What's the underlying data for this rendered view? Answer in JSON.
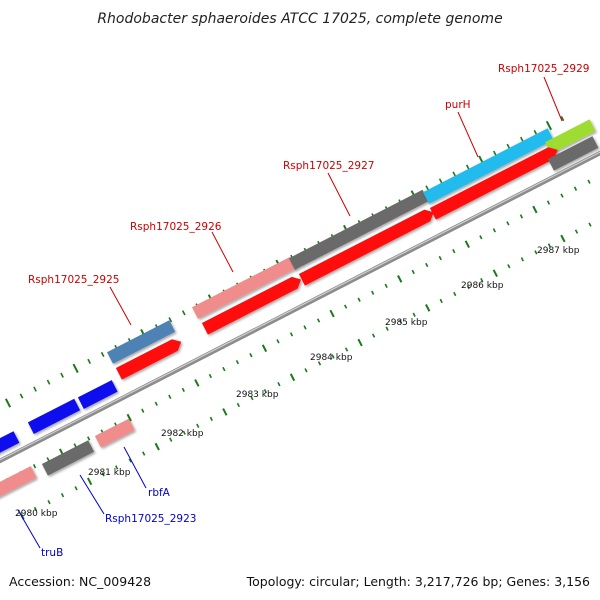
{
  "title": "Rhodobacter sphaeroides ATCC 17025, complete genome",
  "footer": {
    "accession": "Accession: NC_009428",
    "summary": "Topology: circular; Length: 3,217,726 bp; Genes: 3,156"
  },
  "colors": {
    "forward_label": "#cc0000",
    "reverse_label": "#0000cc",
    "tick": "#1a7a1a",
    "backbone": "#8c8c8c",
    "cds_red": "#ff1111",
    "cds_pink": "#f08c8c",
    "cds_gray": "#6b6b6b",
    "cds_steel": "#4f82b4",
    "cds_cyan": "#22bbee",
    "cds_lime": "#9edc32",
    "cds_blue": "#1111ee"
  },
  "scale": {
    "unit": "kbp",
    "labels": [
      "2980 kbp",
      "2981 kbp",
      "2982 kbp",
      "2983 kbp",
      "2984 kbp",
      "2985 kbp",
      "2986 kbp",
      "2987 kbp"
    ]
  },
  "gene_labels": {
    "forward": [
      "Rsph17025_2925",
      "Rsph17025_2926",
      "Rsph17025_2927",
      "purH",
      "Rsph17025_2929"
    ],
    "reverse": [
      "rbfA",
      "Rsph17025_2923",
      "truB"
    ]
  }
}
